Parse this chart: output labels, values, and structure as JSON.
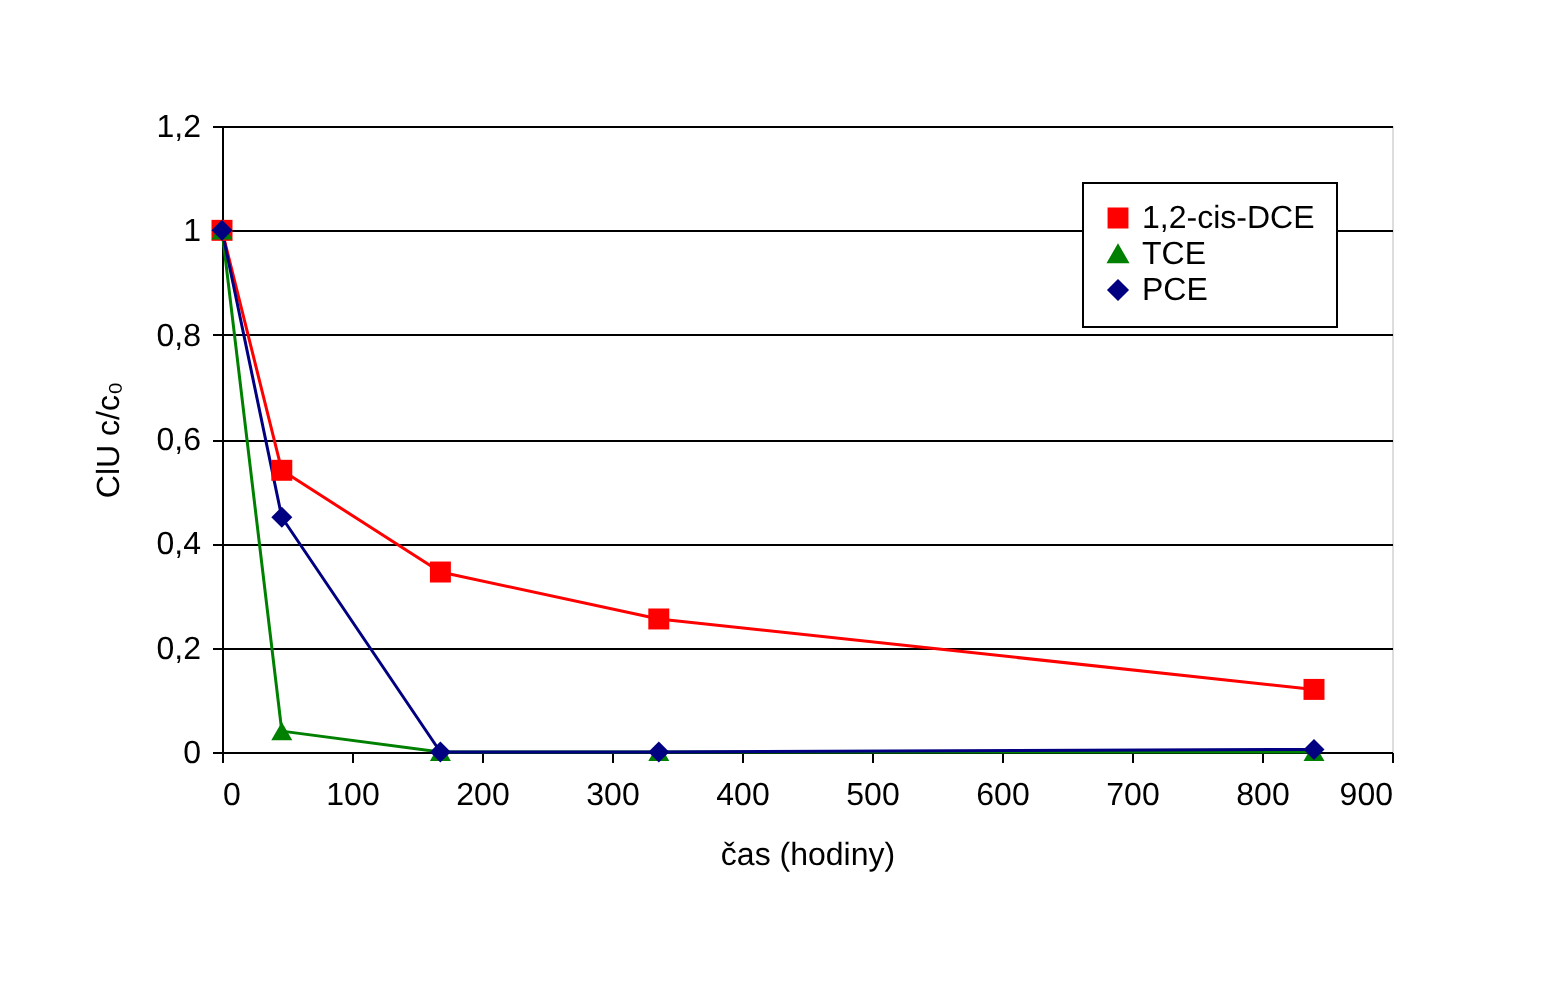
{
  "chart_data": {
    "type": "line",
    "xlabel": "čas (hodiny)",
    "ylabel": "ClU c/c₀",
    "x": [
      0,
      46,
      168,
      336,
      840
    ],
    "series": [
      {
        "name": "1,2-cis-DCE",
        "color": "#ff0000",
        "marker": "square",
        "values": [
          1,
          0.54,
          0.345,
          0.255,
          0.12
        ]
      },
      {
        "name": "TCE",
        "color": "#008000",
        "marker": "triangle",
        "values": [
          1,
          0.04,
          0,
          0,
          0
        ]
      },
      {
        "name": "PCE",
        "color": "#000080",
        "marker": "diamond",
        "values": [
          1,
          0.45,
          0,
          0,
          0.005
        ]
      }
    ],
    "xlim": [
      0,
      900
    ],
    "xticks": [
      0,
      100,
      200,
      300,
      400,
      500,
      600,
      700,
      800,
      900
    ],
    "ylim": [
      0,
      1.2
    ],
    "yticks": [
      0,
      {
        "value": 0.2,
        "label": "0,2"
      },
      {
        "value": 0.4,
        "label": "0,4"
      },
      {
        "value": 0.6,
        "label": "0,6"
      },
      {
        "value": 0.8,
        "label": "0,8"
      },
      1,
      {
        "value": 1.2,
        "label": "1,2"
      }
    ],
    "grid": "y",
    "legend": "top right",
    "line_style": "solid"
  }
}
